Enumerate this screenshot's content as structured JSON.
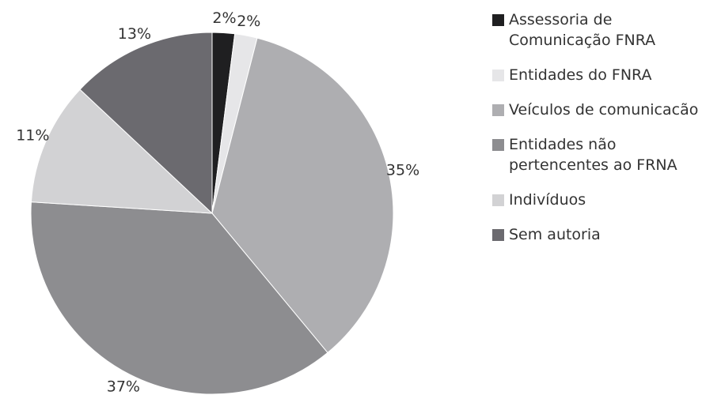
{
  "chart_data": {
    "type": "pie",
    "categories": [
      "Assessoria de Comunicação FNRA",
      "Entidades do FNRA",
      "Veículos de comunicacão",
      "Entidades não pertencentes ao FRNA",
      "Indivíduos",
      "Sem autoria"
    ],
    "values": [
      2,
      2,
      35,
      37,
      11,
      13
    ],
    "value_labels": [
      "2%",
      "2%",
      "35%",
      "37%",
      "11%",
      "13%"
    ],
    "colors": [
      "#1f1f21",
      "#e6e6e8",
      "#aeaeb1",
      "#8d8d90",
      "#d2d2d4",
      "#6b6a6f"
    ],
    "legend": "right"
  }
}
